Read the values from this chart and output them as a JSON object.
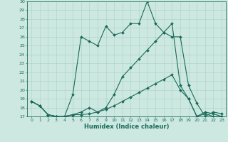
{
  "title": "",
  "xlabel": "Humidex (Indice chaleur)",
  "background_color": "#cce8e0",
  "grid_color": "#aacfc8",
  "line_color": "#1a6b5a",
  "xlim": [
    -0.5,
    23.5
  ],
  "ylim": [
    17,
    30
  ],
  "yticks": [
    17,
    18,
    19,
    20,
    21,
    22,
    23,
    24,
    25,
    26,
    27,
    28,
    29,
    30
  ],
  "xticks": [
    0,
    1,
    2,
    3,
    4,
    5,
    6,
    7,
    8,
    9,
    10,
    11,
    12,
    13,
    14,
    15,
    16,
    17,
    18,
    19,
    20,
    21,
    22,
    23
  ],
  "series": [
    [
      18.7,
      18.2,
      17.2,
      17.0,
      17.0,
      19.5,
      26.0,
      25.5,
      25.0,
      27.2,
      26.2,
      26.5,
      27.5,
      27.5,
      30.0,
      27.5,
      26.5,
      26.0,
      26.0,
      20.5,
      18.5,
      17.0,
      17.5,
      17.3
    ],
    [
      18.7,
      18.2,
      17.2,
      17.0,
      17.0,
      17.2,
      17.5,
      18.0,
      17.5,
      18.0,
      19.5,
      21.5,
      22.5,
      23.5,
      24.5,
      25.5,
      26.5,
      27.5,
      20.5,
      19.0,
      17.0,
      17.5,
      17.3,
      17.0
    ],
    [
      18.7,
      18.2,
      17.2,
      17.0,
      17.0,
      17.2,
      17.2,
      17.3,
      17.5,
      17.8,
      18.2,
      18.7,
      19.2,
      19.7,
      20.2,
      20.7,
      21.2,
      21.7,
      20.0,
      19.0,
      17.0,
      17.3,
      17.0,
      17.0
    ]
  ],
  "markersize": 2.0,
  "linewidth": 0.8,
  "xlabel_fontsize": 6.0,
  "tick_fontsize": 4.5
}
